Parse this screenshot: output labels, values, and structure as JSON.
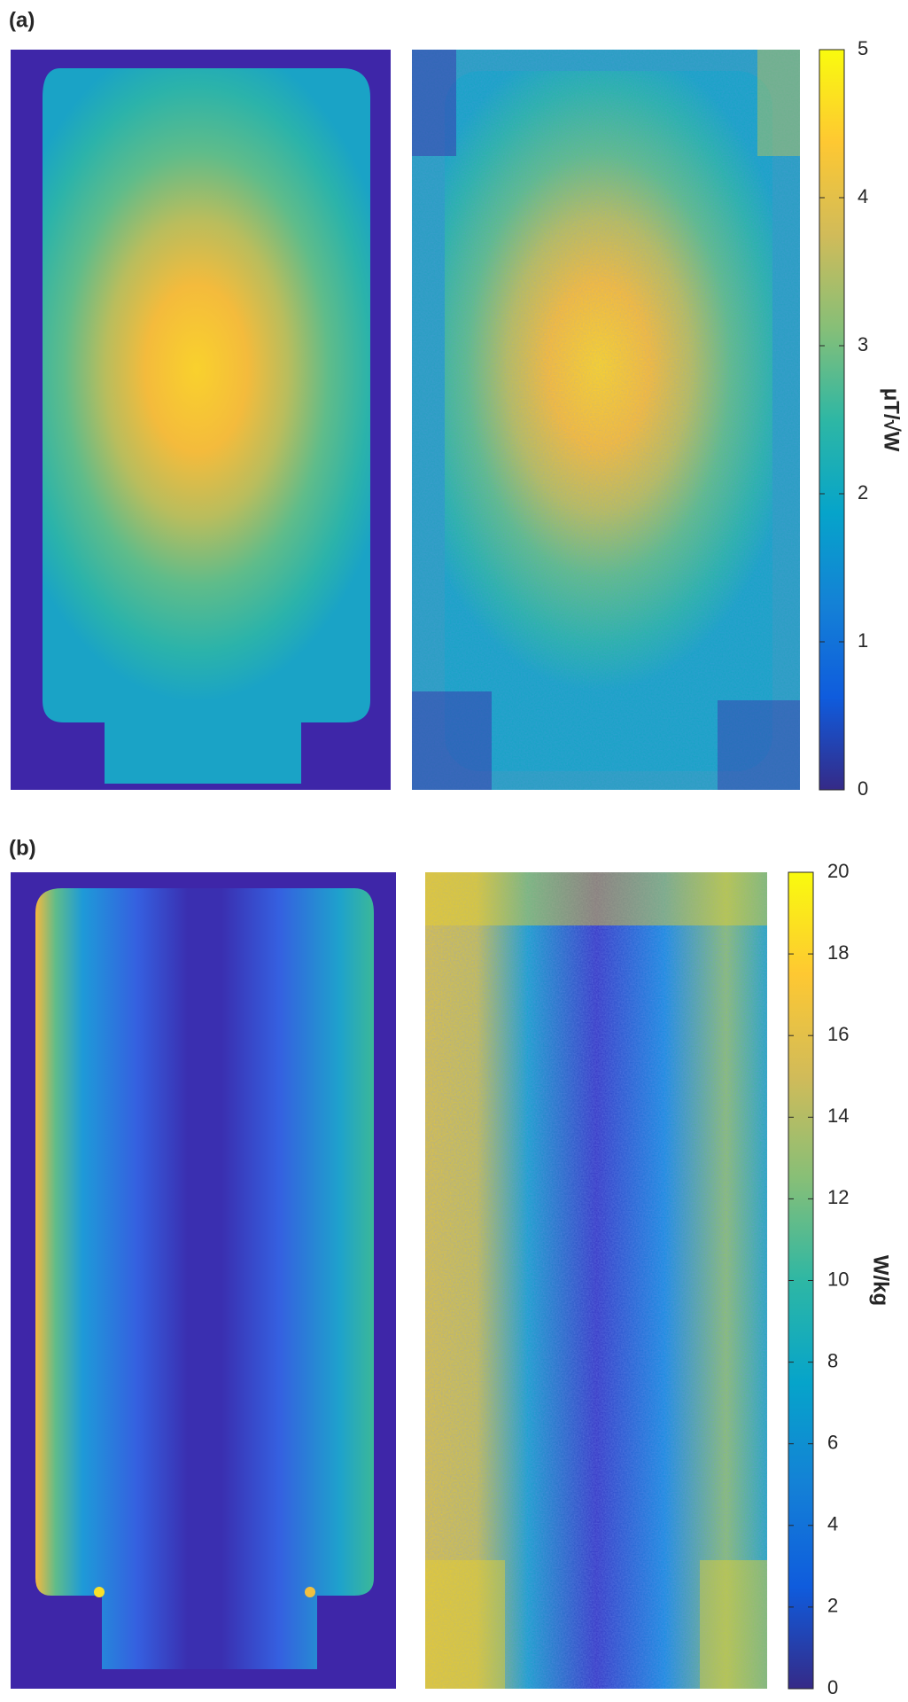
{
  "chart_data": [
    {
      "type": "heatmap",
      "panel_label": "(a)",
      "colormap": "parula",
      "colorbar": {
        "label": "μT/√W",
        "clim": [
          0,
          5
        ],
        "ticks": [
          0,
          1,
          2,
          3,
          4,
          5
        ]
      }
    },
    {
      "type": "heatmap",
      "panel_label": "(b)",
      "colormap": "parula",
      "colorbar": {
        "label": "W/kg",
        "clim": [
          0,
          20
        ],
        "ticks": [
          0,
          2,
          4,
          6,
          8,
          10,
          12,
          14,
          16,
          18,
          20
        ]
      }
    }
  ]
}
